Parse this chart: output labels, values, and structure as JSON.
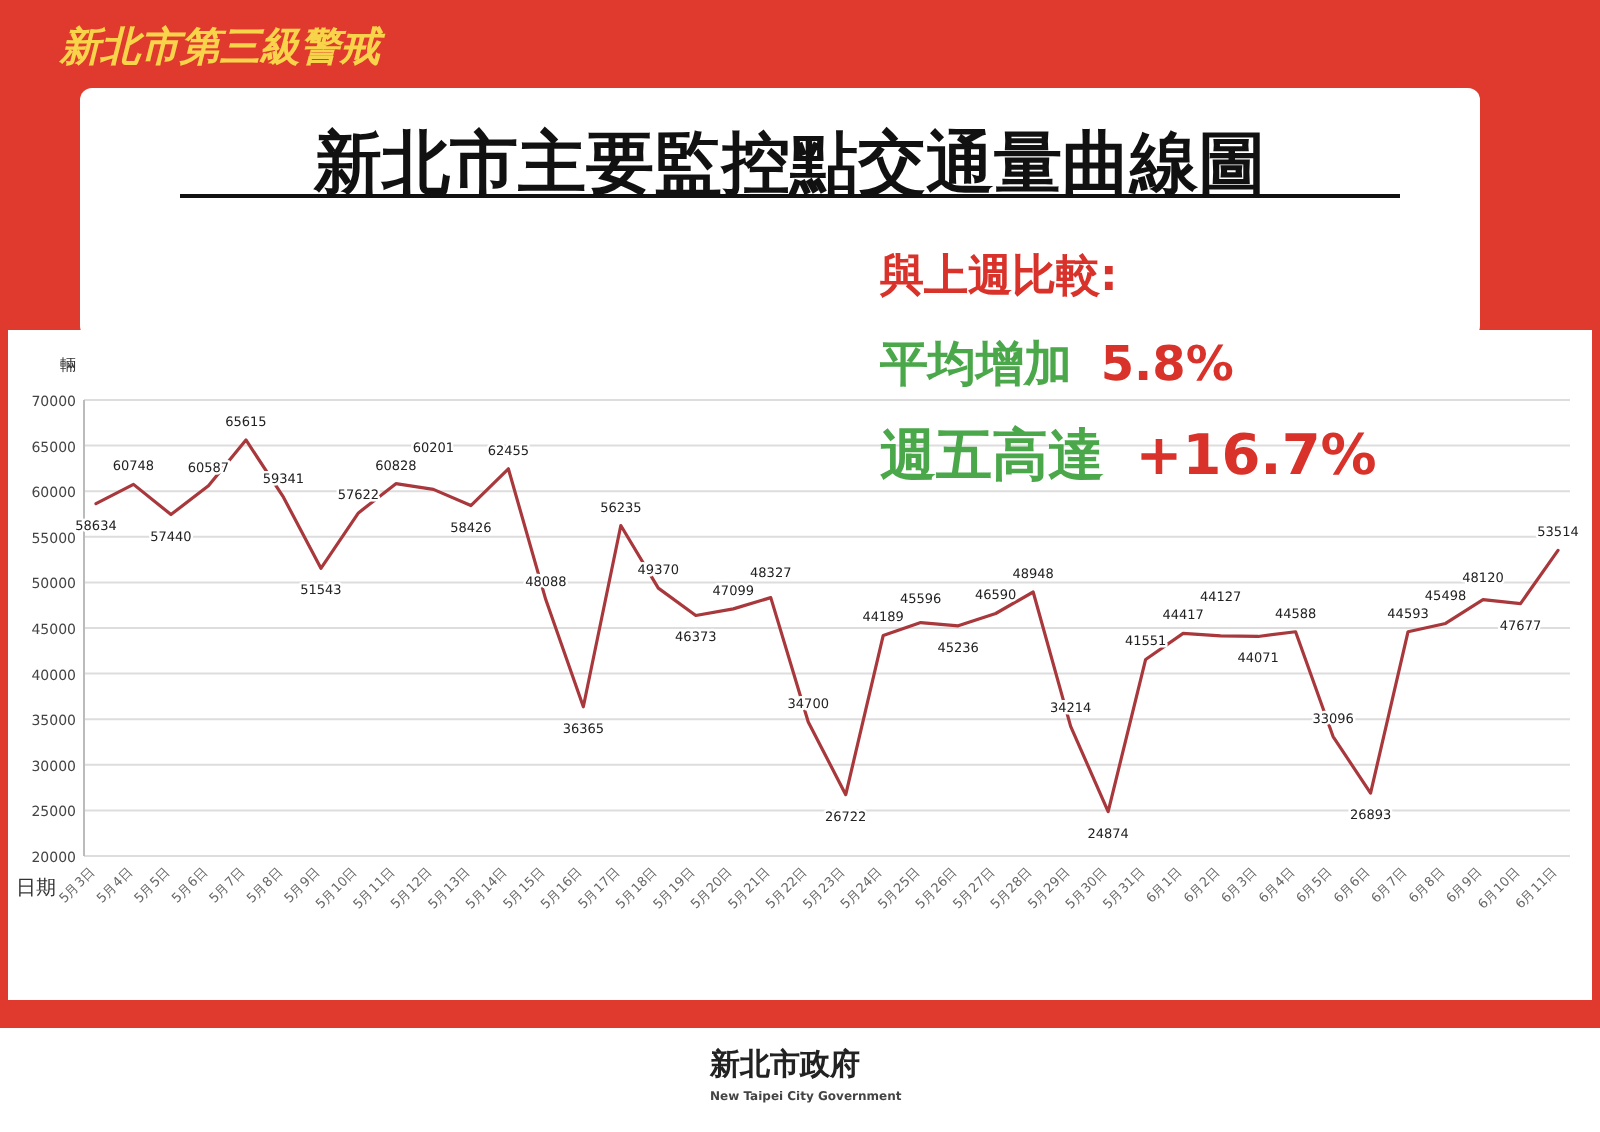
{
  "chart_data": {
    "type": "line",
    "title": "新北市主要監控點交通量曲線圖",
    "subtitle": "新北市第三級警戒",
    "xlabel": "日期",
    "ylabel": "輛",
    "categories": [
      "5月3日",
      "5月4日",
      "5月5日",
      "5月6日",
      "5月7日",
      "5月8日",
      "5月9日",
      "5月10日",
      "5月11日",
      "5月12日",
      "5月13日",
      "5月14日",
      "5月15日",
      "5月16日",
      "5月17日",
      "5月18日",
      "5月19日",
      "5月20日",
      "5月21日",
      "5月22日",
      "5月23日",
      "5月24日",
      "5月25日",
      "5月26日",
      "5月27日",
      "5月28日",
      "5月29日",
      "5月30日",
      "5月31日",
      "6月1日",
      "6月2日",
      "6月3日",
      "6月4日",
      "6月5日",
      "6月6日",
      "6月7日",
      "6月8日",
      "6月9日",
      "6月10日",
      "6月11日"
    ],
    "series": [
      {
        "color": "#a8383c",
        "values": [
          58634,
          60748,
          57440,
          60587,
          65615,
          59341,
          51543,
          57622,
          60828,
          60201,
          58426,
          62455,
          48088,
          36365,
          56235,
          49370,
          46373,
          47099,
          48327,
          34700,
          26722,
          44189,
          45596,
          45236,
          46590,
          48948,
          34214,
          24874,
          41551,
          44417,
          44127,
          44071,
          44588,
          33096,
          26893,
          44593,
          45498,
          48120,
          47677,
          53514
        ]
      }
    ],
    "ylim": [
      20000,
      70000
    ],
    "yticks": [
      20000,
      25000,
      30000,
      35000,
      40000,
      45000,
      50000,
      55000,
      60000,
      65000,
      70000
    ],
    "grid": "y",
    "data_labels": true,
    "annotations": [
      "與上週比較:",
      "平均增加 5.8%",
      "週五高達 +16.7%",
      "新北市政府",
      "New Taipei City Government"
    ]
  }
}
